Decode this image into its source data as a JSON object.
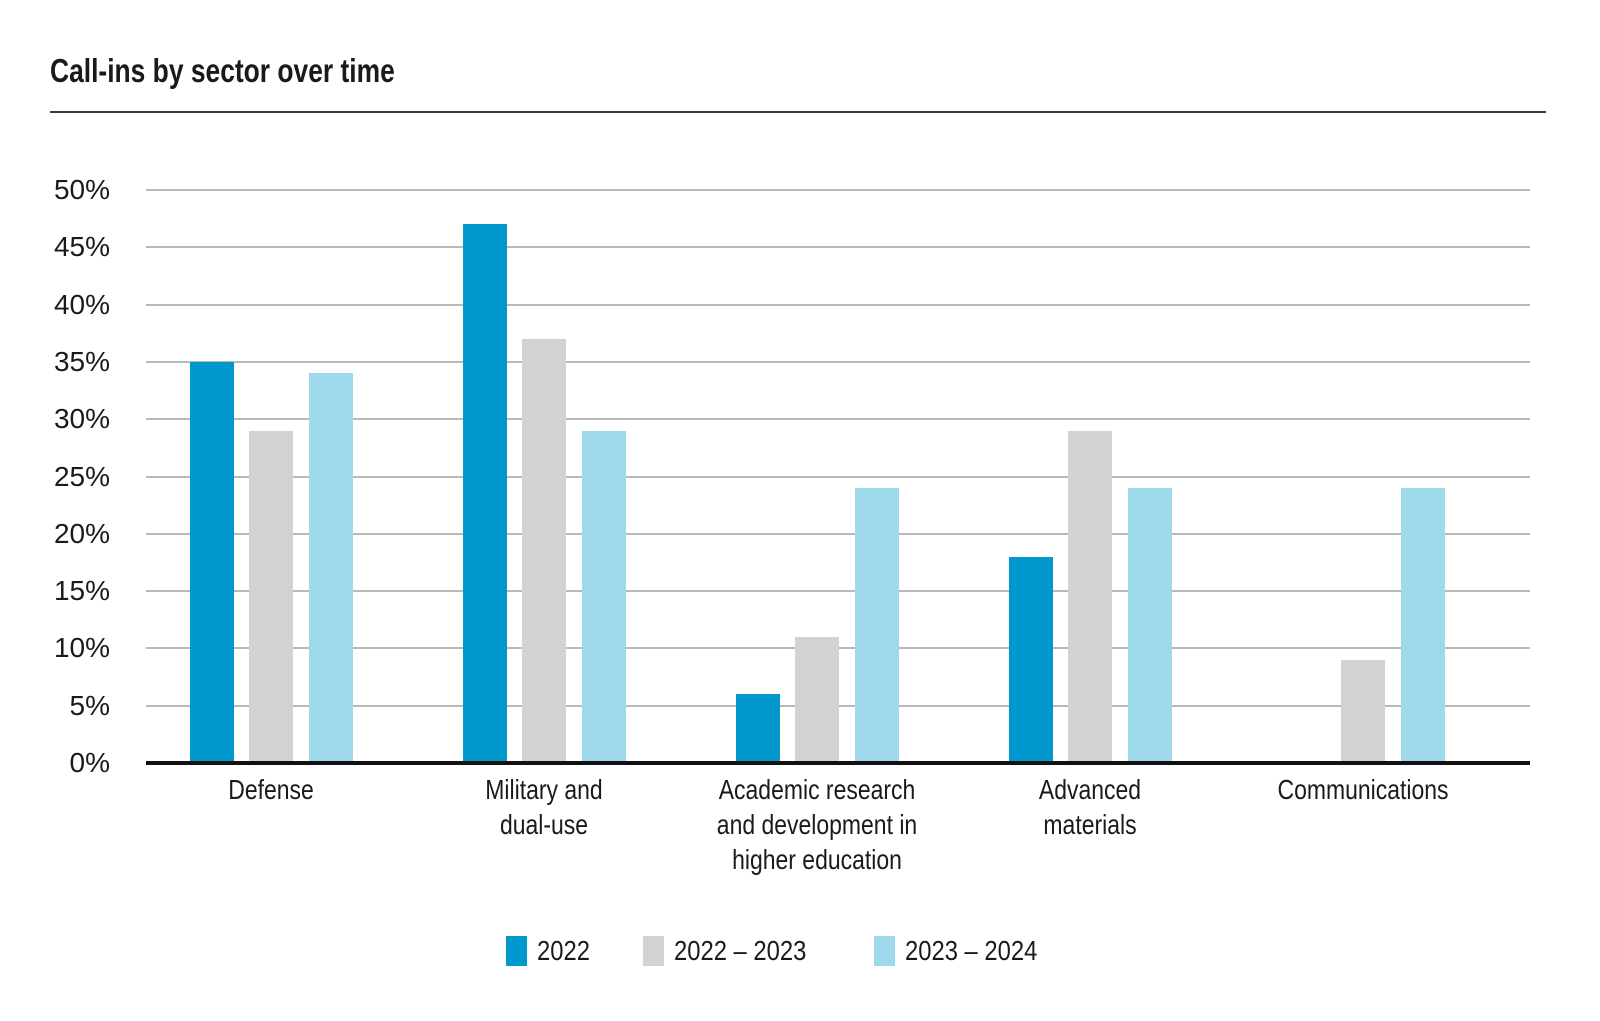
{
  "title": "Call-ins by sector over time",
  "chart_data": {
    "type": "bar",
    "title": "Call-ins by sector over time",
    "categories": [
      "Defense",
      "Military and dual-use",
      "Academic research and development in higher education",
      "Advanced materials",
      "Communications"
    ],
    "category_lines": [
      [
        "Defense"
      ],
      [
        "Military and",
        "dual-use"
      ],
      [
        "Academic research",
        "and development in",
        "higher education"
      ],
      [
        "Advanced",
        "materials"
      ],
      [
        "Communications"
      ]
    ],
    "series": [
      {
        "name": "2022",
        "color": "#0098CD",
        "values": [
          35,
          47,
          6,
          18,
          0
        ]
      },
      {
        "name": "2022 – 2023",
        "color": "#D2D2D2",
        "values": [
          29,
          37,
          11,
          29,
          9
        ]
      },
      {
        "name": "2023 – 2024",
        "color": "#9DD8EB",
        "values": [
          34,
          29,
          24,
          24,
          24
        ]
      }
    ],
    "xlabel": "",
    "ylabel": "",
    "ylim": [
      0,
      50
    ],
    "ytick_step": 5,
    "ytick_suffix": "%",
    "grid": "horizontal",
    "legend_position": "bottom"
  },
  "colors": {
    "background": "#ffffff",
    "grid": "#b8b8b8",
    "axis": "#111111",
    "text": "#1a1a1a",
    "title_rule": "#3a3a3a"
  }
}
